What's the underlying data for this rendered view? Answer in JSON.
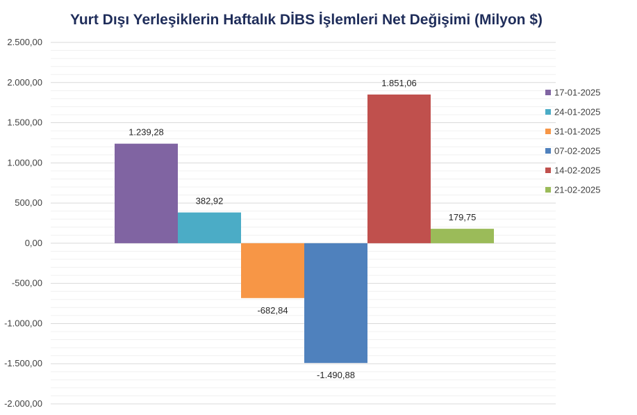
{
  "chart_data": {
    "type": "bar",
    "title": "Yurt Dışı Yerleşiklerin Haftalık DİBS İşlemleri Net Değişimi (Milyon $)",
    "xlabel": "",
    "ylabel": "",
    "ylim": [
      -2000,
      2500
    ],
    "y_ticks": [
      2500,
      2000,
      1500,
      1000,
      500,
      0,
      -500,
      -1000,
      -1500,
      -2000
    ],
    "y_tick_labels": [
      "2.500,00",
      "2.000,00",
      "1.500,00",
      "1.000,00",
      "500,00",
      "0,00",
      "-500,00",
      "-1.000,00",
      "-1.500,00",
      "-2.000,00"
    ],
    "grid": true,
    "legend_position": "right",
    "series": [
      {
        "name": "17-01-2025",
        "value": 1239.28,
        "label": "1.239,28",
        "color": "#8064a2"
      },
      {
        "name": "24-01-2025",
        "value": 382.92,
        "label": "382,92",
        "color": "#4bacc6"
      },
      {
        "name": "31-01-2025",
        "value": -682.84,
        "label": "-682,84",
        "color": "#f79646"
      },
      {
        "name": "07-02-2025",
        "value": -1490.88,
        "label": "-1.490,88",
        "color": "#4f81bd"
      },
      {
        "name": "14-02-2025",
        "value": 1851.06,
        "label": "1.851,06",
        "color": "#c0504d"
      },
      {
        "name": "21-02-2025",
        "value": 179.75,
        "label": "179,75",
        "color": "#9bbb59"
      }
    ]
  }
}
